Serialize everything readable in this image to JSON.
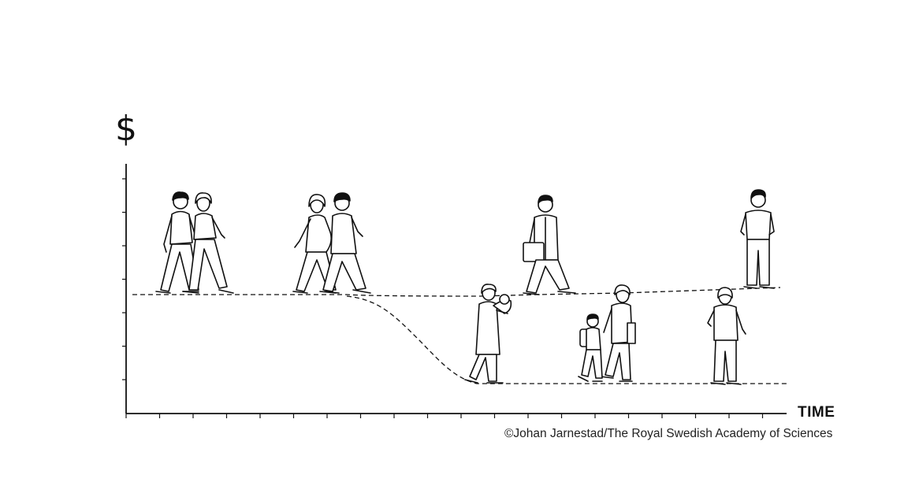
{
  "diagram": {
    "y_axis_label": "$",
    "x_axis_label": "TIME",
    "credit": "©Johan Jarnestad/The Royal Swedish Academy of Sciences",
    "lines": [
      {
        "name": "income-without-children",
        "style": "dashed"
      },
      {
        "name": "income-with-children",
        "style": "dashed"
      }
    ],
    "figures": [
      "couple-walking",
      "pregnant-couple-walking",
      "woman-holding-baby",
      "man-with-briefcase",
      "woman-with-child",
      "man-standing",
      "woman-standing"
    ]
  }
}
